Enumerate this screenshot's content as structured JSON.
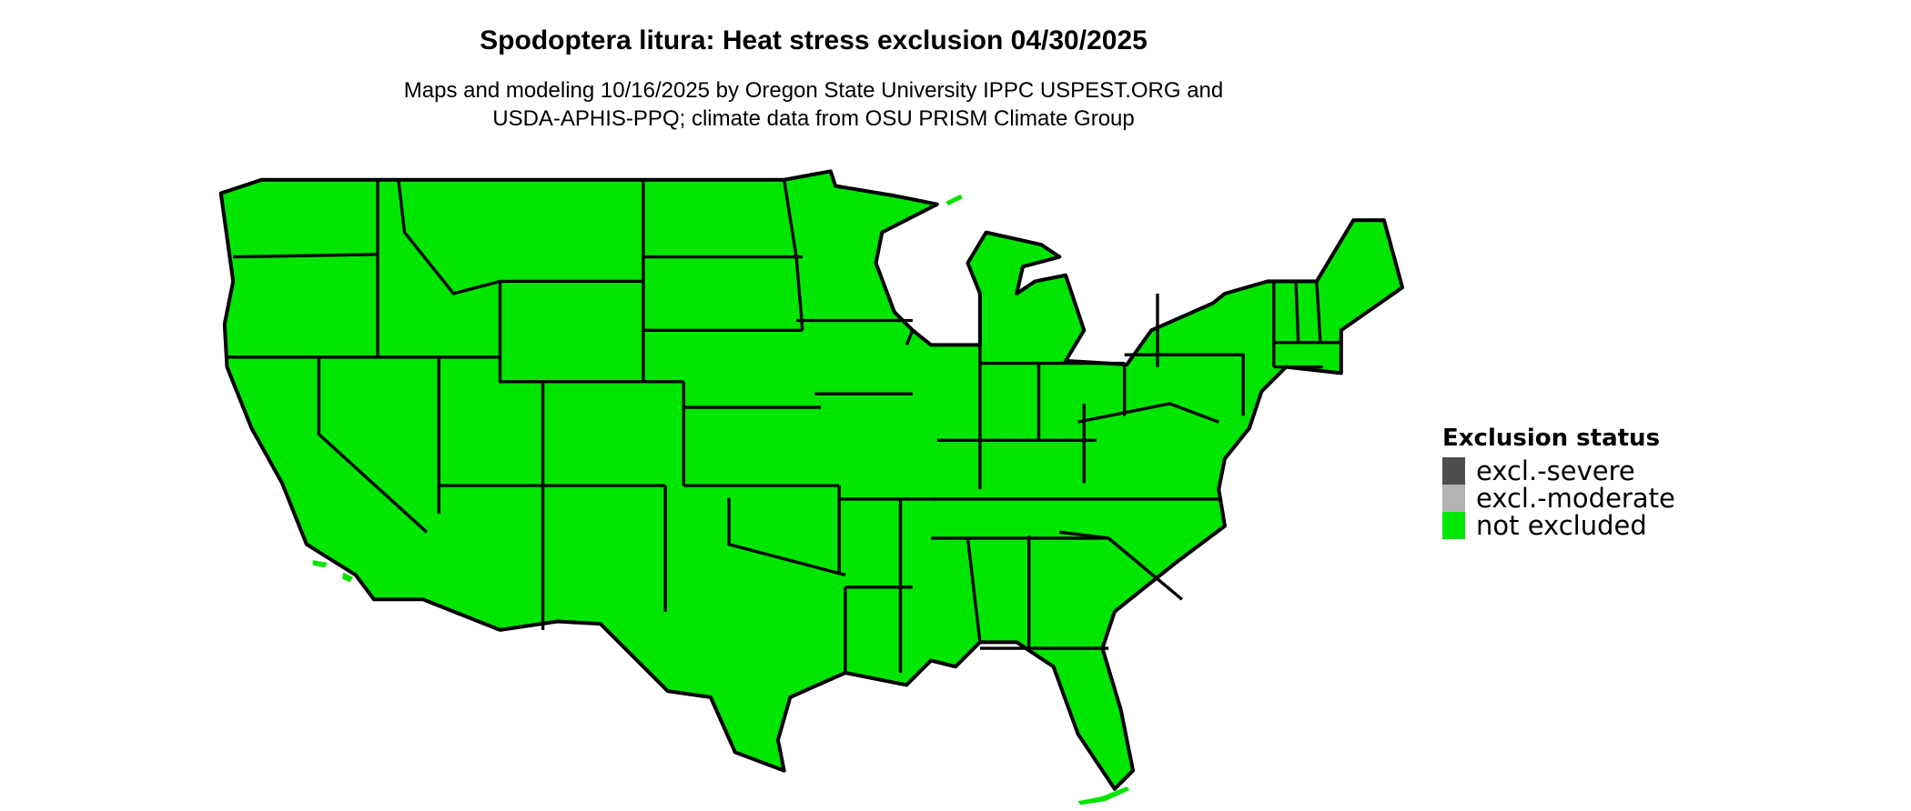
{
  "title": "Spodoptera litura: Heat stress exclusion 04/30/2025",
  "subtitle_lines": [
    "Maps and modeling 10/16/2025 by Oregon State University IPPC USPEST.ORG and",
    "USDA-APHIS-PPQ; climate data from OSU PRISM Climate Group"
  ],
  "map": {
    "region": "Contiguous United States",
    "status_shown": "not excluded",
    "fill_color": "#00e600",
    "border_color": "#000000"
  },
  "legend": {
    "title": "Exclusion status",
    "items": [
      {
        "label": "excl.-severe",
        "color": "#4d4d4d"
      },
      {
        "label": "excl.-moderate",
        "color": "#b3b3b3"
      },
      {
        "label": "not excluded",
        "color": "#00e600"
      }
    ]
  }
}
